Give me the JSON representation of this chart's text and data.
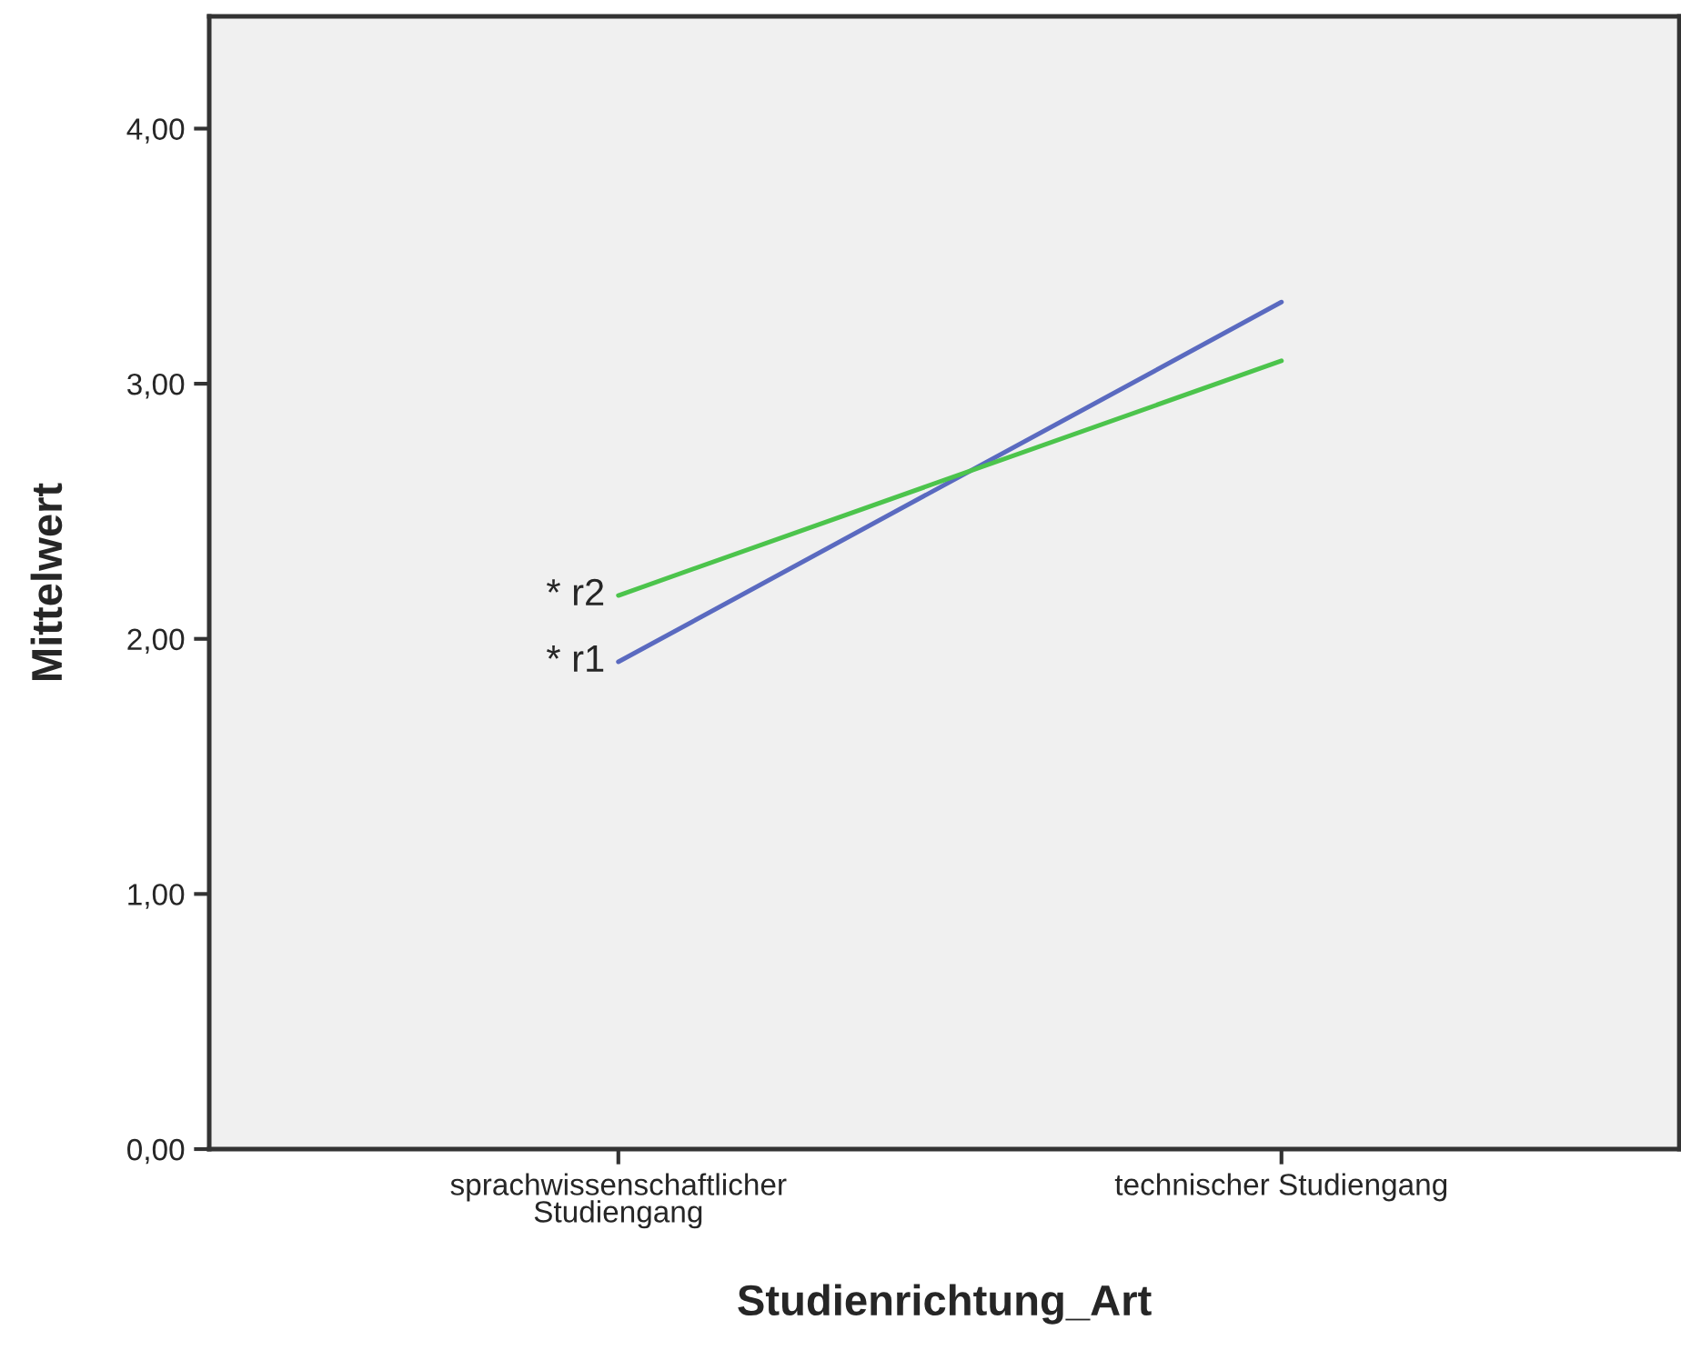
{
  "chart_data": {
    "type": "line",
    "xlabel": "Studienrichtung_Art",
    "ylabel": "Mittelwert",
    "categories": [
      "sprachwissenschaftlicher\nStudiengang",
      "technischer Studiengang"
    ],
    "series": [
      {
        "name": "* r1",
        "color": "#5a6ac0",
        "values": [
          1.91,
          3.32
        ]
      },
      {
        "name": "* r2",
        "color": "#4cc44c",
        "values": [
          2.17,
          3.09
        ]
      }
    ],
    "ylim": [
      0,
      4.44
    ],
    "yticks": [
      {
        "value": 0,
        "label": "0,00"
      },
      {
        "value": 1,
        "label": "1,00"
      },
      {
        "value": 2,
        "label": "2,00"
      },
      {
        "value": 3,
        "label": "3,00"
      },
      {
        "value": 4,
        "label": "4,00"
      }
    ],
    "grid": false,
    "legend": false,
    "marker": "none",
    "line_style": "solid"
  }
}
